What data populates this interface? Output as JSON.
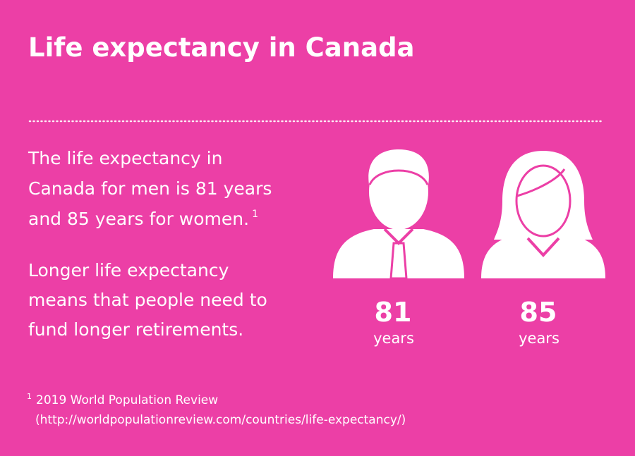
{
  "header": {
    "title": "Life expectancy in Canada"
  },
  "paragraphs": [
    {
      "lines": [
        "The life expectancy in",
        "Canada for men is 81 years",
        "and 85 years for women."
      ],
      "note_marker": "1"
    },
    {
      "lines": [
        "Longer life expectancy",
        "means that people need to",
        "fund longer retirements."
      ]
    }
  ],
  "figures": [
    {
      "value": 81,
      "unit": "years"
    },
    {
      "value": 85,
      "unit": "years"
    }
  ],
  "footnote": {
    "marker": "1",
    "source": "2019 World Population Review",
    "url": "(http://worldpopulationreview.com/countries/life-expectancy/)"
  }
}
